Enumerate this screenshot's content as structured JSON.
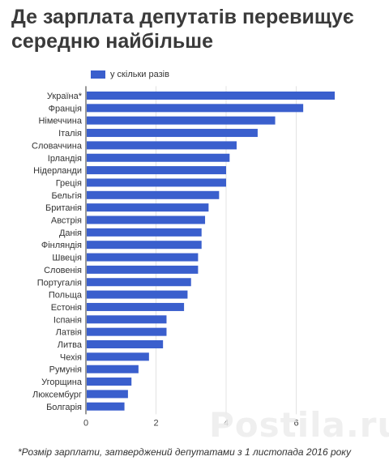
{
  "title": "Де зарплата депутатів перевищує середню найбільше",
  "footnote": "*Розмір зарплати, затверджений депутатами з 1 листопада 2016 року",
  "watermark": "Postila.ru",
  "colors": {
    "bar": "#3a5fcd",
    "grid": "#e3e3e3"
  },
  "chart_data": {
    "type": "bar",
    "orientation": "horizontal",
    "categories": [
      "Україна*",
      "Франція",
      "Німеччина",
      "Італія",
      "Словаччина",
      "Ірландія",
      "Нідерланди",
      "Греція",
      "Бельгія",
      "Британія",
      "Австрія",
      "Данія",
      "Фінляндія",
      "Швеція",
      "Словенія",
      "Португалія",
      "Польща",
      "Естонія",
      "Іспанія",
      "Латвія",
      "Литва",
      "Чехія",
      "Румунія",
      "Угорщина",
      "Люксембург",
      "Болгарія"
    ],
    "series": [
      {
        "name": "у скільки разів",
        "values": [
          7.1,
          6.2,
          5.4,
          4.9,
          4.3,
          4.1,
          4.0,
          4.0,
          3.8,
          3.5,
          3.4,
          3.3,
          3.3,
          3.2,
          3.2,
          3.0,
          2.9,
          2.8,
          2.3,
          2.3,
          2.2,
          1.8,
          1.5,
          1.3,
          1.2,
          1.1
        ]
      }
    ],
    "xlim": [
      0,
      8
    ],
    "xticks": [
      0,
      2,
      4,
      6
    ],
    "legend": "top",
    "grid": true
  }
}
